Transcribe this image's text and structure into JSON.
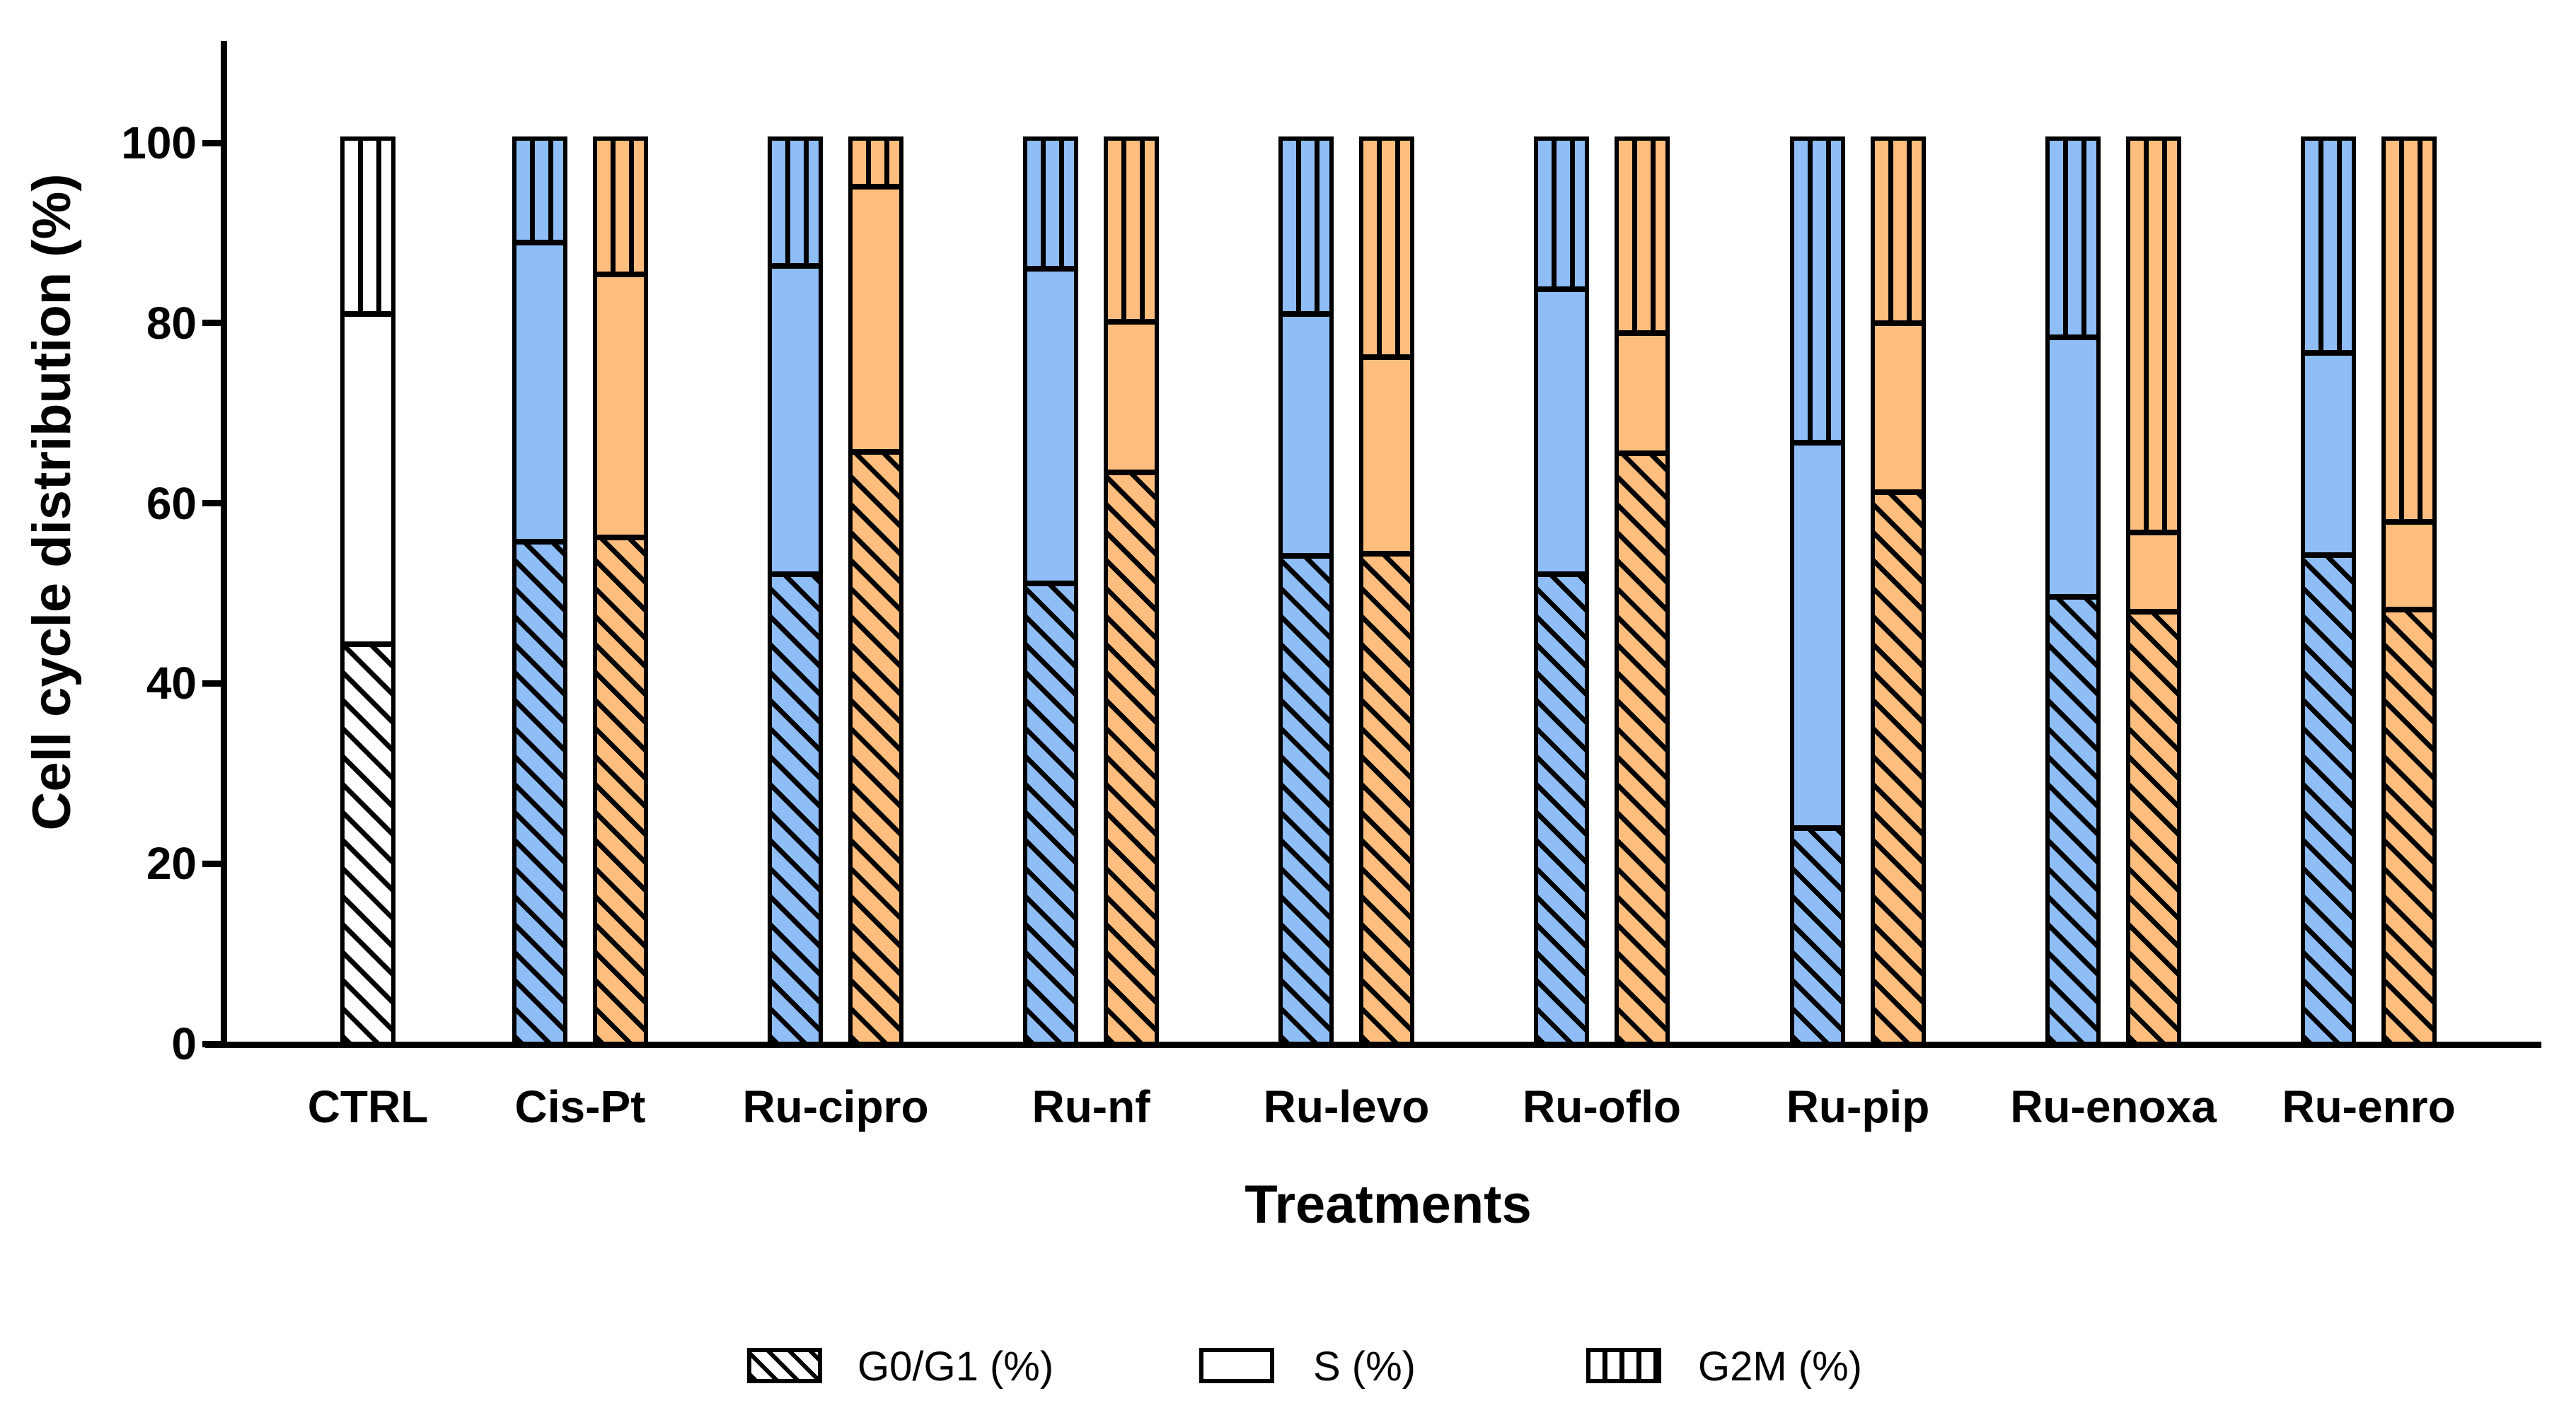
{
  "figure": {
    "y_axis_title": "Cell cycle distribution (%)",
    "x_axis_title": "Treatments"
  },
  "legend": {
    "items": [
      {
        "label": "G0/G1 (%)",
        "pattern": "diagonal-hatch"
      },
      {
        "label": "S (%)",
        "pattern": "solid"
      },
      {
        "label": "G2M (%)",
        "pattern": "vertical-hatch"
      }
    ]
  },
  "colors": {
    "control_fill": "#FFFFFF",
    "blue_fill": "#8FBDF6",
    "orange_fill": "#FFBE7D",
    "ink": "#000000"
  },
  "chart_data": {
    "type": "bar",
    "subtype": "stacked-bar",
    "title": "",
    "xlabel": "Treatments",
    "ylabel": "Cell cycle distribution (%)",
    "ylim": [
      0,
      100
    ],
    "yticks": [
      0,
      20,
      40,
      60,
      80,
      100
    ],
    "grid": false,
    "legend_position": "bottom",
    "segments_top_to_bottom": [
      "G2M",
      "S",
      "G0G1"
    ],
    "segment_labels": {
      "G0G1": "G0/G1 (%)",
      "S": "S (%)",
      "G2M": "G2M (%)"
    },
    "segment_patterns": {
      "G0G1": "diagonal-hatch",
      "S": "solid",
      "G2M": "vertical-hatch"
    },
    "categories": [
      "CTRL",
      "Cis-Pt",
      "Ru-cipro",
      "Ru-nf",
      "Ru-levo",
      "Ru-oflo",
      "Ru-pip",
      "Ru-enoxa",
      "Ru-enro"
    ],
    "groups": [
      {
        "label": "CTRL",
        "bars": [
          {
            "name": "control",
            "fill": "#FFFFFF",
            "values": {
              "G0G1": 44.4,
              "S": 36.7,
              "G2M": 18.9
            }
          }
        ]
      },
      {
        "label": "Cis-Pt",
        "bars": [
          {
            "name": "blue",
            "fill": "#8FBDF6",
            "values": {
              "G0G1": 55.8,
              "S": 33.2,
              "G2M": 11.0
            }
          },
          {
            "name": "orange",
            "fill": "#FFBE7D",
            "values": {
              "G0G1": 56.3,
              "S": 29.2,
              "G2M": 14.5
            }
          }
        ]
      },
      {
        "label": "Ru-cipro",
        "bars": [
          {
            "name": "blue",
            "fill": "#8FBDF6",
            "values": {
              "G0G1": 52.2,
              "S": 34.2,
              "G2M": 13.6
            }
          },
          {
            "name": "orange",
            "fill": "#FFBE7D",
            "values": {
              "G0G1": 65.8,
              "S": 29.4,
              "G2M": 4.8
            }
          }
        ]
      },
      {
        "label": "Ru-nf",
        "bars": [
          {
            "name": "blue",
            "fill": "#8FBDF6",
            "values": {
              "G0G1": 51.2,
              "S": 34.9,
              "G2M": 13.9
            }
          },
          {
            "name": "orange",
            "fill": "#FFBE7D",
            "values": {
              "G0G1": 63.5,
              "S": 16.7,
              "G2M": 19.8
            }
          }
        ]
      },
      {
        "label": "Ru-levo",
        "bars": [
          {
            "name": "blue",
            "fill": "#8FBDF6",
            "values": {
              "G0G1": 54.2,
              "S": 26.9,
              "G2M": 18.9
            }
          },
          {
            "name": "orange",
            "fill": "#FFBE7D",
            "values": {
              "G0G1": 54.5,
              "S": 21.8,
              "G2M": 23.7
            }
          }
        ]
      },
      {
        "label": "Ru-oflo",
        "bars": [
          {
            "name": "blue",
            "fill": "#8FBDF6",
            "values": {
              "G0G1": 52.2,
              "S": 31.6,
              "G2M": 16.2
            }
          },
          {
            "name": "orange",
            "fill": "#FFBE7D",
            "values": {
              "G0G1": 65.6,
              "S": 13.4,
              "G2M": 21.0
            }
          }
        ]
      },
      {
        "label": "Ru-pip",
        "bars": [
          {
            "name": "blue",
            "fill": "#8FBDF6",
            "values": {
              "G0G1": 24.0,
              "S": 42.8,
              "G2M": 33.2
            }
          },
          {
            "name": "orange",
            "fill": "#FFBE7D",
            "values": {
              "G0G1": 61.3,
              "S": 18.8,
              "G2M": 19.9
            }
          }
        ]
      },
      {
        "label": "Ru-enoxa",
        "bars": [
          {
            "name": "blue",
            "fill": "#8FBDF6",
            "values": {
              "G0G1": 49.7,
              "S": 28.8,
              "G2M": 21.5
            }
          },
          {
            "name": "orange",
            "fill": "#FFBE7D",
            "values": {
              "G0G1": 48.0,
              "S": 8.8,
              "G2M": 43.2
            }
          }
        ]
      },
      {
        "label": "Ru-enro",
        "bars": [
          {
            "name": "blue",
            "fill": "#8FBDF6",
            "values": {
              "G0G1": 54.3,
              "S": 22.5,
              "G2M": 23.2
            }
          },
          {
            "name": "orange",
            "fill": "#FFBE7D",
            "values": {
              "G0G1": 48.3,
              "S": 9.7,
              "G2M": 42.0
            }
          }
        ]
      }
    ]
  }
}
